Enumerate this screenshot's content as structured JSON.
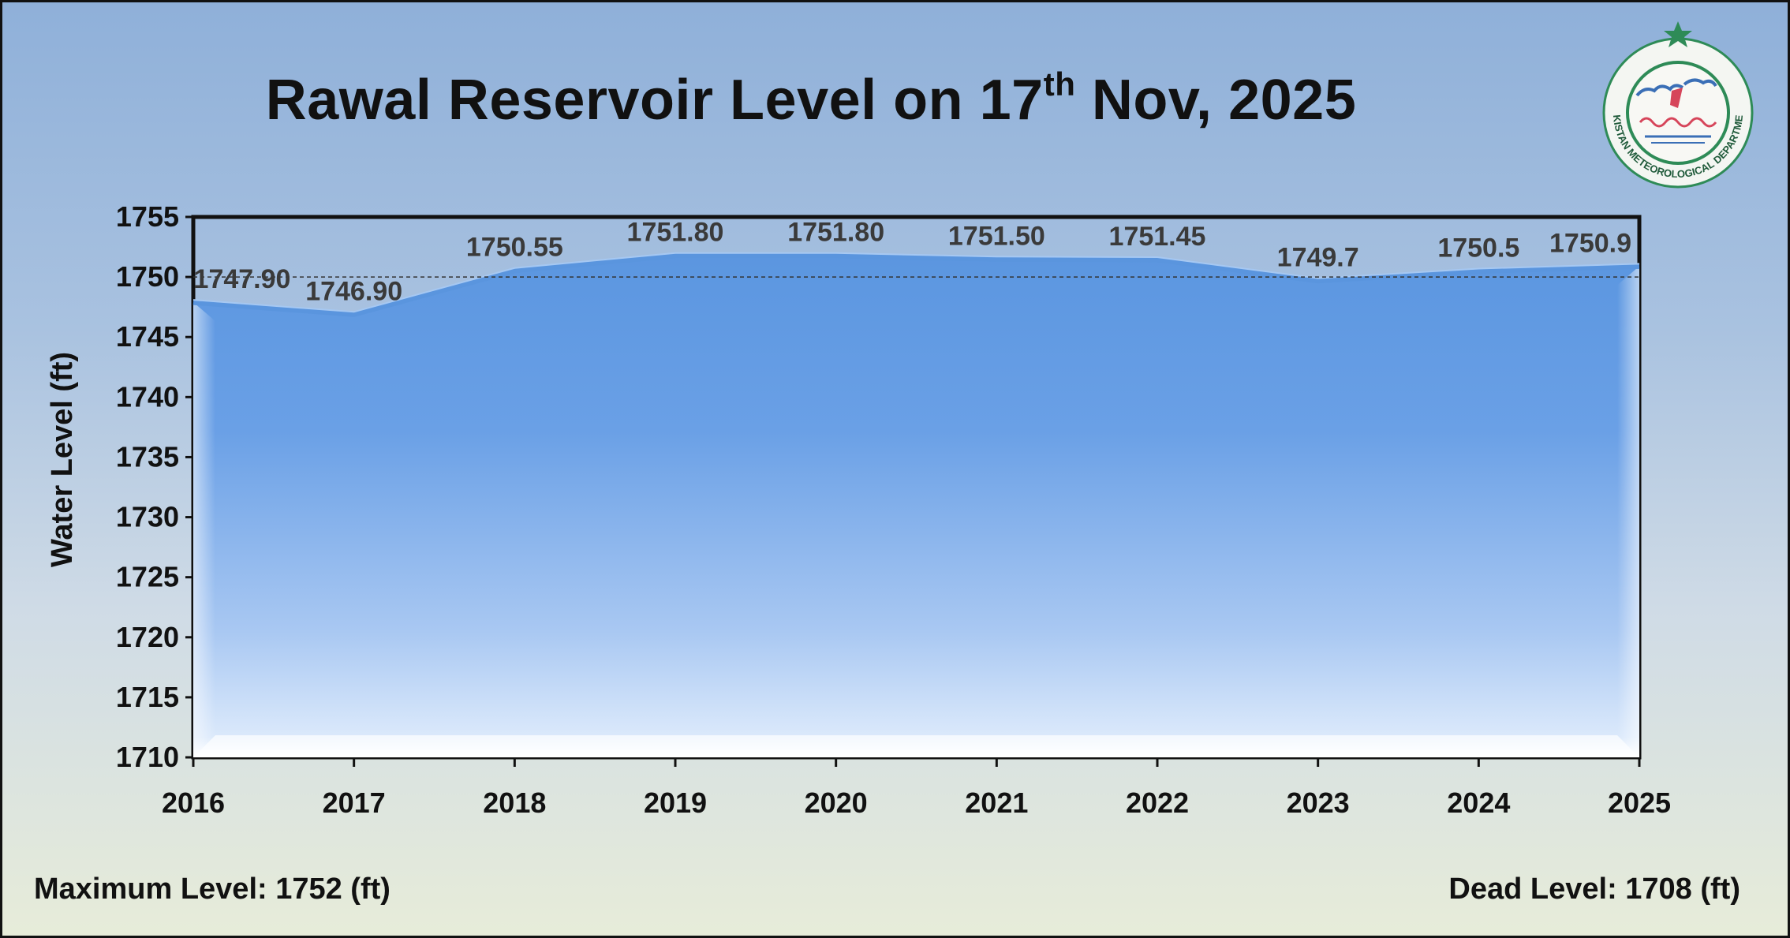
{
  "title": {
    "main": "Rawal Reservoir Level on 17",
    "sup": "th",
    "tail": " Nov, 2025"
  },
  "footer": {
    "left": "Maximum Level: 1752 (ft)",
    "right": "Dead Level: 1708 (ft)"
  },
  "logo": {
    "name": "Pakistan Meteorological Department seal",
    "text": "PAKISTAN METEOROLOGICAL DEPARTMENT",
    "colors": {
      "ring": "#2e8b57",
      "star": "#2e8b57",
      "accent": "#d6455a",
      "sky": "#3b6fb6"
    }
  },
  "colors": {
    "area_top": "#5b96e0",
    "area_bottom": "#ffffff",
    "line": "#5a95de"
  },
  "chart_data": {
    "type": "area",
    "title": "Rawal Reservoir Level on 17th Nov, 2025",
    "xlabel": "",
    "ylabel": "Water Level (ft)",
    "categories": [
      "2016",
      "2017",
      "2018",
      "2019",
      "2020",
      "2021",
      "2022",
      "2023",
      "2024",
      "2025"
    ],
    "values": [
      1747.9,
      1746.9,
      1750.55,
      1751.8,
      1751.8,
      1751.5,
      1751.45,
      1749.7,
      1750.5,
      1750.9
    ],
    "data_labels": [
      "1747.90",
      "1746.90",
      "1750.55",
      "1751.80",
      "1751.80",
      "1751.50",
      "1751.45",
      "1749.7",
      "1750.5",
      "1750.9"
    ],
    "ylim": [
      1710,
      1755
    ],
    "yticks": [
      1710,
      1715,
      1720,
      1725,
      1730,
      1735,
      1740,
      1745,
      1750,
      1755
    ],
    "reference_line": 1750,
    "grid": false,
    "legend": "none"
  }
}
